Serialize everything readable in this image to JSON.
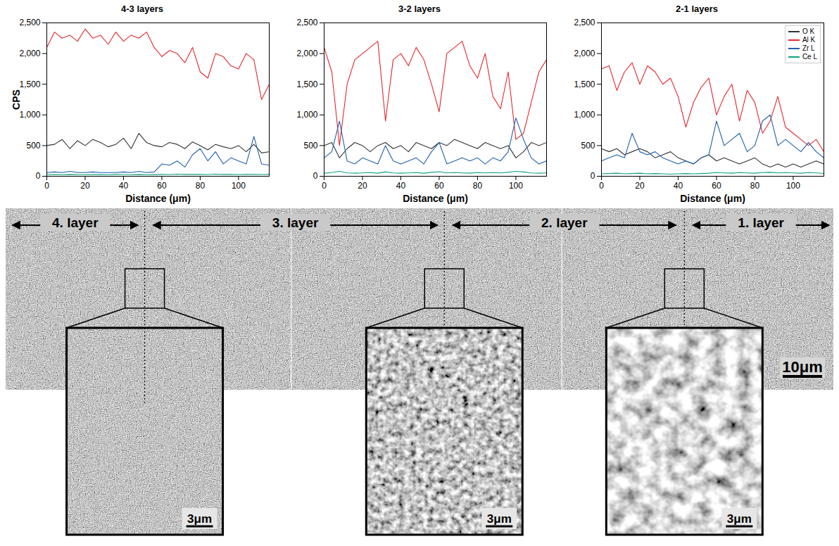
{
  "chart_data": [
    {
      "type": "line",
      "title": "4-3 layers",
      "xlabel": "Distance (μm)",
      "ylabel": "CPS",
      "x": [
        0,
        4,
        8,
        12,
        16,
        20,
        24,
        28,
        32,
        36,
        40,
        44,
        48,
        52,
        56,
        60,
        64,
        68,
        72,
        76,
        80,
        84,
        88,
        92,
        96,
        100,
        104,
        108,
        112,
        116
      ],
      "xlim": [
        0,
        116
      ],
      "xticks": [
        0,
        20,
        40,
        60,
        80,
        100
      ],
      "ylim": [
        0,
        2500
      ],
      "yticks": [
        0,
        500,
        1000,
        1500,
        2000,
        2500
      ],
      "series": [
        {
          "name": "O K",
          "color": "#333333",
          "values": [
            500,
            520,
            600,
            450,
            580,
            500,
            600,
            550,
            480,
            520,
            620,
            450,
            700,
            550,
            500,
            480,
            550,
            520,
            450,
            560,
            500,
            430,
            520,
            480,
            450,
            500,
            400,
            520,
            380,
            400
          ]
        },
        {
          "name": "Al K",
          "color": "#e8262b",
          "values": [
            2100,
            2350,
            2250,
            2300,
            2200,
            2400,
            2250,
            2300,
            2150,
            2350,
            2200,
            2300,
            2250,
            2350,
            2100,
            1950,
            2050,
            2000,
            1850,
            2100,
            1700,
            1600,
            2000,
            1950,
            1800,
            1750,
            2000,
            1900,
            1250,
            1500
          ]
        },
        {
          "name": "Zr L",
          "color": "#1f5fae",
          "values": [
            60,
            70,
            60,
            80,
            60,
            60,
            70,
            60,
            60,
            60,
            70,
            60,
            80,
            60,
            70,
            200,
            180,
            250,
            150,
            350,
            450,
            250,
            400,
            200,
            300,
            250,
            200,
            650,
            200,
            180
          ]
        },
        {
          "name": "Ce L",
          "color": "#10a37f",
          "values": [
            25,
            28,
            25,
            30,
            26,
            25,
            28,
            27,
            25,
            30,
            28,
            26,
            30,
            25,
            27,
            30,
            28,
            35,
            30,
            32,
            30,
            28,
            35,
            30,
            30,
            28,
            32,
            30,
            28,
            30
          ]
        }
      ]
    },
    {
      "type": "line",
      "title": "3-2 layers",
      "xlabel": "Distance (μm)",
      "x": [
        0,
        4,
        8,
        12,
        16,
        20,
        24,
        28,
        32,
        36,
        40,
        44,
        48,
        52,
        56,
        60,
        64,
        68,
        72,
        76,
        80,
        84,
        88,
        92,
        96,
        100,
        104,
        108,
        112,
        116
      ],
      "xlim": [
        0,
        116
      ],
      "xticks": [
        0,
        20,
        40,
        60,
        80,
        100
      ],
      "ylim": [
        0,
        2500
      ],
      "yticks": [
        0,
        500,
        1000,
        1500,
        2000,
        2500
      ],
      "series": [
        {
          "name": "O K",
          "color": "#333333",
          "values": [
            500,
            550,
            300,
            450,
            550,
            500,
            400,
            500,
            550,
            450,
            500,
            400,
            550,
            500,
            450,
            550,
            500,
            600,
            550,
            500,
            450,
            550,
            500,
            450,
            500,
            300,
            400,
            550,
            500,
            550
          ]
        },
        {
          "name": "Al K",
          "color": "#e8262b",
          "values": [
            2100,
            1700,
            500,
            1500,
            1900,
            2000,
            2100,
            2200,
            900,
            1900,
            2000,
            1800,
            2100,
            1900,
            1500,
            1050,
            2000,
            2100,
            2200,
            1800,
            1600,
            2000,
            1300,
            1100,
            1700,
            600,
            700,
            1200,
            1700,
            1900
          ]
        },
        {
          "name": "Zr L",
          "color": "#1f5fae",
          "values": [
            300,
            400,
            900,
            250,
            200,
            300,
            250,
            200,
            500,
            250,
            200,
            250,
            300,
            200,
            400,
            550,
            200,
            250,
            300,
            250,
            300,
            200,
            300,
            250,
            400,
            950,
            600,
            300,
            200,
            250
          ]
        },
        {
          "name": "Ce L",
          "color": "#10a37f",
          "values": [
            50,
            60,
            80,
            55,
            50,
            55,
            60,
            50,
            70,
            55,
            50,
            55,
            60,
            50,
            65,
            75,
            55,
            60,
            55,
            50,
            60,
            55,
            60,
            55,
            65,
            80,
            70,
            55,
            50,
            55
          ]
        }
      ]
    },
    {
      "type": "line",
      "title": "2-1 layers",
      "xlabel": "Distance (μm)",
      "legend": "top-right",
      "x": [
        0,
        4,
        8,
        12,
        16,
        20,
        24,
        28,
        32,
        36,
        40,
        44,
        48,
        52,
        56,
        60,
        64,
        68,
        72,
        76,
        80,
        84,
        88,
        92,
        96,
        100,
        104,
        108,
        112,
        116
      ],
      "xlim": [
        0,
        116
      ],
      "xticks": [
        0,
        20,
        40,
        60,
        80,
        100
      ],
      "ylim": [
        0,
        2500
      ],
      "yticks": [
        0,
        500,
        1000,
        1500,
        2000,
        2500
      ],
      "series": [
        {
          "name": "O K",
          "color": "#333333",
          "values": [
            450,
            400,
            450,
            350,
            400,
            450,
            400,
            300,
            350,
            400,
            300,
            250,
            200,
            300,
            350,
            250,
            300,
            250,
            200,
            250,
            300,
            200,
            150,
            200,
            150,
            200,
            150,
            200,
            250,
            200
          ]
        },
        {
          "name": "Al K",
          "color": "#e8262b",
          "values": [
            1750,
            1800,
            1400,
            1700,
            1850,
            1500,
            1800,
            1700,
            1500,
            1600,
            1300,
            800,
            1200,
            1450,
            1600,
            1000,
            1300,
            1500,
            900,
            1400,
            1200,
            700,
            900,
            1300,
            800,
            700,
            600,
            500,
            600,
            400
          ]
        },
        {
          "name": "Zr L",
          "color": "#1f5fae",
          "values": [
            250,
            300,
            350,
            300,
            700,
            400,
            350,
            400,
            300,
            250,
            200,
            250,
            200,
            300,
            350,
            900,
            500,
            600,
            700,
            400,
            500,
            900,
            1000,
            500,
            600,
            500,
            400,
            550,
            400,
            300
          ]
        },
        {
          "name": "Ce L",
          "color": "#10a37f",
          "values": [
            40,
            45,
            50,
            40,
            45,
            50,
            40,
            45,
            40,
            35,
            40,
            45,
            40,
            45,
            50,
            60,
            55,
            50,
            60,
            55,
            50,
            60,
            65,
            55,
            60,
            55,
            50,
            60,
            55,
            45
          ]
        }
      ]
    }
  ],
  "micrograph": {
    "layers": [
      "4. layer",
      "3. layer",
      "2. layer",
      "1. layer"
    ],
    "scale_bar": "10μm",
    "inset_scale_bars": [
      "3μm",
      "3μm",
      "3μm"
    ]
  }
}
